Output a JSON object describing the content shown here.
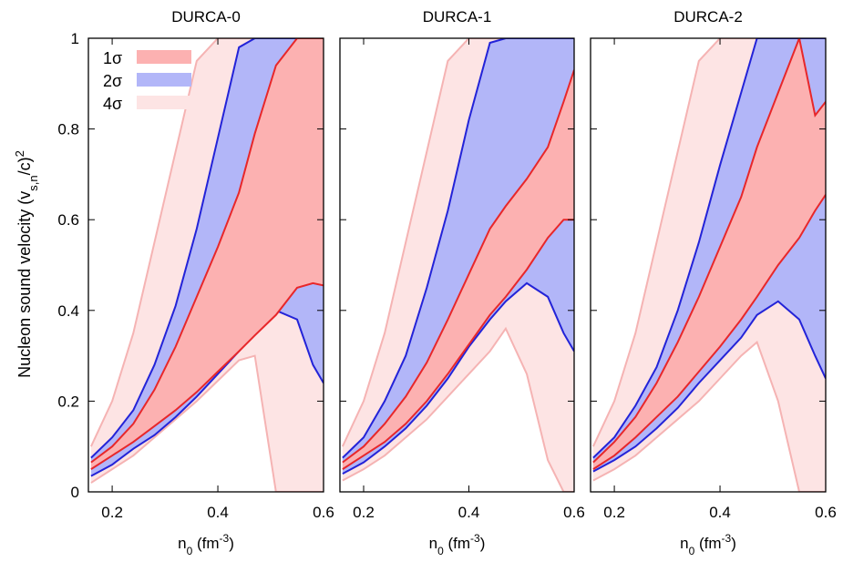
{
  "figure": {
    "ylabel_main": "Nucleon sound velocity (v",
    "ylabel_sub": "s,n",
    "ylabel_mid": "/c)",
    "ylabel_sup": "2",
    "xlabel_main": "n",
    "xlabel_sub": "0",
    "xlabel_unit": "(fm",
    "xlabel_sup": "-3",
    "xlabel_close": ")",
    "legend": [
      {
        "label": "1σ",
        "color": "#fcb1b1"
      },
      {
        "label": "2σ",
        "color": "#b2b6f8"
      },
      {
        "label": "4σ",
        "color": "#fde4e4"
      }
    ],
    "colors": {
      "band1": "#fcb1b1",
      "band2": "#b2b6f8",
      "band4": "#fde4e4",
      "line1": "#e8272a",
      "line2": "#2323d8",
      "line4": "#f5b3b3"
    }
  },
  "chart_data": [
    {
      "type": "area",
      "title": "DURCA-0",
      "xlabel": "n0 (fm^-3)",
      "ylabel": "Nucleon sound velocity (v_s,n/c)^2",
      "xlim": [
        0.155,
        0.6
      ],
      "ylim": [
        0,
        1
      ],
      "xticks": [
        0.2,
        0.4,
        0.6
      ],
      "yticks": [
        0,
        0.2,
        0.4,
        0.6,
        0.8,
        1
      ],
      "grid": false,
      "legend_position": "top-left",
      "series": [
        {
          "name": "4σ",
          "x": [
            0.16,
            0.2,
            0.24,
            0.28,
            0.32,
            0.36,
            0.4,
            0.44,
            0.47,
            0.51,
            0.55,
            0.58,
            0.6
          ],
          "lower": [
            0.02,
            0.05,
            0.08,
            0.12,
            0.16,
            0.2,
            0.245,
            0.29,
            0.3,
            0.0,
            0.0,
            0.0,
            0.0
          ],
          "upper": [
            0.1,
            0.2,
            0.35,
            0.55,
            0.75,
            0.95,
            1.0,
            1.0,
            1.0,
            1.0,
            1.0,
            1.0,
            1.0
          ]
        },
        {
          "name": "2σ",
          "x": [
            0.16,
            0.2,
            0.24,
            0.28,
            0.32,
            0.36,
            0.4,
            0.44,
            0.47,
            0.51,
            0.55,
            0.58,
            0.6
          ],
          "lower": [
            0.035,
            0.06,
            0.095,
            0.125,
            0.165,
            0.21,
            0.26,
            0.31,
            0.35,
            0.4,
            0.38,
            0.28,
            0.24
          ],
          "upper": [
            0.075,
            0.12,
            0.18,
            0.28,
            0.41,
            0.58,
            0.78,
            0.98,
            1.0,
            1.0,
            1.0,
            1.0,
            1.0
          ]
        },
        {
          "name": "1σ",
          "x": [
            0.16,
            0.2,
            0.24,
            0.28,
            0.32,
            0.36,
            0.4,
            0.44,
            0.47,
            0.51,
            0.55,
            0.58,
            0.6
          ],
          "lower": [
            0.05,
            0.08,
            0.11,
            0.145,
            0.18,
            0.22,
            0.265,
            0.31,
            0.345,
            0.39,
            0.45,
            0.46,
            0.455
          ],
          "upper": [
            0.065,
            0.1,
            0.15,
            0.225,
            0.32,
            0.43,
            0.54,
            0.66,
            0.79,
            0.94,
            1.0,
            1.0,
            1.0
          ]
        }
      ]
    },
    {
      "type": "area",
      "title": "DURCA-1",
      "xlabel": "n0 (fm^-3)",
      "ylabel": "",
      "xlim": [
        0.155,
        0.6
      ],
      "ylim": [
        0,
        1
      ],
      "xticks": [
        0.2,
        0.4,
        0.6
      ],
      "yticks": [
        0,
        0.2,
        0.4,
        0.6,
        0.8,
        1
      ],
      "grid": false,
      "series": [
        {
          "name": "4σ",
          "x": [
            0.16,
            0.2,
            0.24,
            0.28,
            0.32,
            0.36,
            0.4,
            0.44,
            0.47,
            0.51,
            0.55,
            0.58,
            0.6
          ],
          "lower": [
            0.025,
            0.05,
            0.08,
            0.12,
            0.16,
            0.21,
            0.26,
            0.31,
            0.36,
            0.26,
            0.07,
            0.0,
            0.0
          ],
          "upper": [
            0.1,
            0.2,
            0.35,
            0.55,
            0.75,
            0.95,
            1.0,
            1.0,
            1.0,
            1.0,
            1.0,
            1.0,
            1.0
          ]
        },
        {
          "name": "2σ",
          "x": [
            0.16,
            0.2,
            0.24,
            0.28,
            0.32,
            0.36,
            0.4,
            0.44,
            0.47,
            0.51,
            0.55,
            0.58,
            0.6
          ],
          "lower": [
            0.04,
            0.065,
            0.1,
            0.14,
            0.19,
            0.25,
            0.32,
            0.38,
            0.42,
            0.46,
            0.43,
            0.35,
            0.31
          ],
          "upper": [
            0.075,
            0.12,
            0.2,
            0.3,
            0.45,
            0.62,
            0.82,
            0.99,
            1.0,
            1.0,
            1.0,
            1.0,
            1.0
          ]
        },
        {
          "name": "1σ",
          "x": [
            0.16,
            0.2,
            0.24,
            0.28,
            0.32,
            0.36,
            0.4,
            0.44,
            0.47,
            0.51,
            0.55,
            0.58,
            0.6
          ],
          "lower": [
            0.05,
            0.08,
            0.11,
            0.15,
            0.2,
            0.26,
            0.325,
            0.39,
            0.43,
            0.49,
            0.56,
            0.6,
            0.6
          ],
          "upper": [
            0.065,
            0.1,
            0.15,
            0.21,
            0.285,
            0.38,
            0.48,
            0.58,
            0.63,
            0.69,
            0.76,
            0.86,
            0.93
          ]
        }
      ]
    },
    {
      "type": "area",
      "title": "DURCA-2",
      "xlabel": "n0 (fm^-3)",
      "ylabel": "",
      "xlim": [
        0.155,
        0.6
      ],
      "ylim": [
        0,
        1
      ],
      "xticks": [
        0.2,
        0.4,
        0.6
      ],
      "yticks": [
        0,
        0.2,
        0.4,
        0.6,
        0.8,
        1
      ],
      "grid": false,
      "series": [
        {
          "name": "4σ",
          "x": [
            0.16,
            0.2,
            0.24,
            0.28,
            0.32,
            0.36,
            0.4,
            0.44,
            0.47,
            0.51,
            0.55,
            0.58,
            0.6
          ],
          "lower": [
            0.025,
            0.05,
            0.08,
            0.12,
            0.16,
            0.2,
            0.25,
            0.3,
            0.33,
            0.2,
            0.0,
            0.0,
            0.0
          ],
          "upper": [
            0.1,
            0.2,
            0.35,
            0.55,
            0.75,
            0.95,
            1.0,
            1.0,
            1.0,
            1.0,
            1.0,
            1.0,
            1.0
          ]
        },
        {
          "name": "2σ",
          "x": [
            0.16,
            0.2,
            0.24,
            0.28,
            0.32,
            0.36,
            0.4,
            0.44,
            0.47,
            0.51,
            0.55,
            0.58,
            0.6
          ],
          "lower": [
            0.045,
            0.07,
            0.1,
            0.14,
            0.185,
            0.24,
            0.29,
            0.34,
            0.39,
            0.42,
            0.38,
            0.3,
            0.25
          ],
          "upper": [
            0.075,
            0.12,
            0.19,
            0.275,
            0.4,
            0.55,
            0.72,
            0.88,
            1.0,
            1.0,
            1.0,
            1.0,
            1.0
          ]
        },
        {
          "name": "1σ",
          "x": [
            0.16,
            0.2,
            0.24,
            0.28,
            0.32,
            0.36,
            0.4,
            0.44,
            0.47,
            0.51,
            0.55,
            0.58,
            0.6
          ],
          "lower": [
            0.05,
            0.08,
            0.12,
            0.165,
            0.21,
            0.265,
            0.32,
            0.38,
            0.43,
            0.5,
            0.56,
            0.62,
            0.655
          ],
          "upper": [
            0.065,
            0.11,
            0.165,
            0.24,
            0.33,
            0.43,
            0.54,
            0.65,
            0.76,
            0.88,
            1.01,
            0.83,
            0.86
          ]
        }
      ]
    }
  ]
}
